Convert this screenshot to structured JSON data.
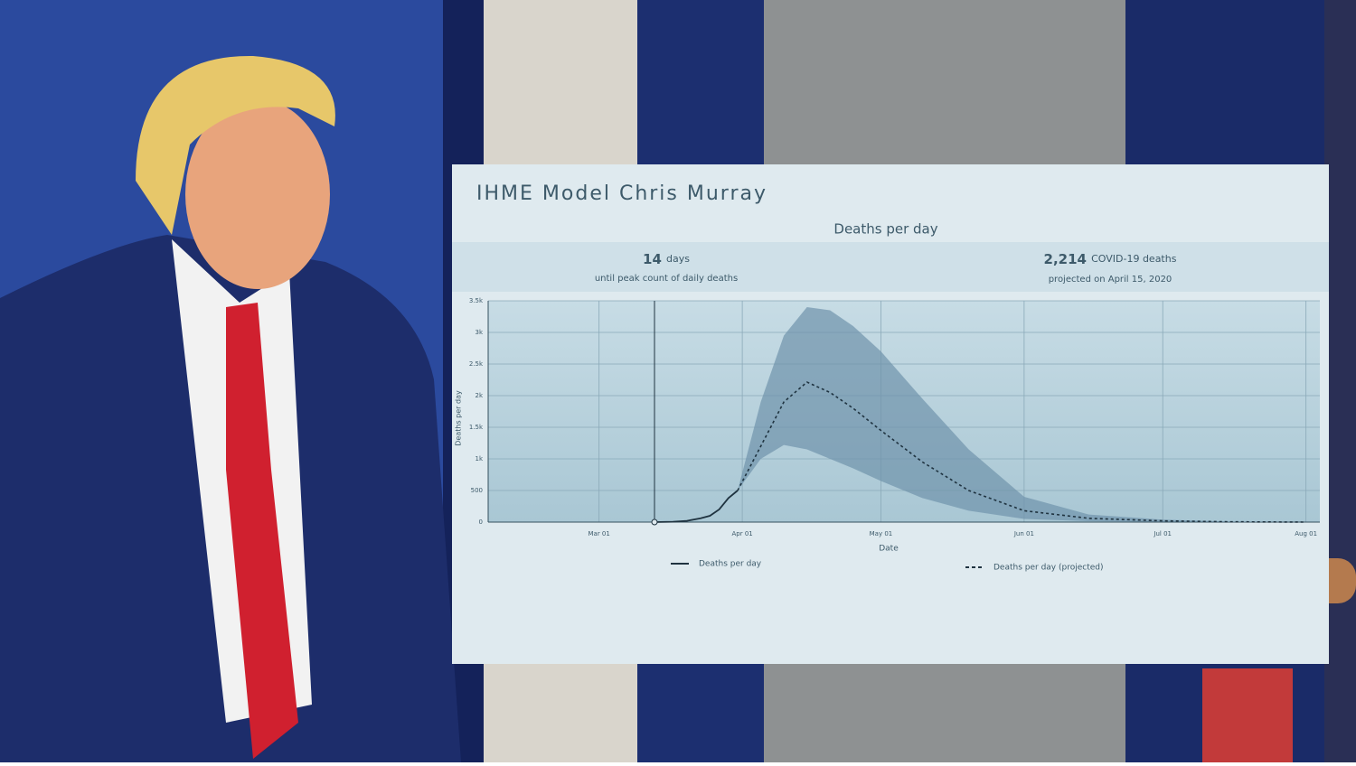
{
  "poster": {
    "title": "IHME Model Chris Murray",
    "subtitle": "Deaths per day",
    "stat_left": {
      "number": "14",
      "unit": "days",
      "caption": "until peak count of daily deaths"
    },
    "stat_right": {
      "number": "2,214",
      "unit": "COVID-19 deaths",
      "caption": "projected on April 15, 2020"
    }
  },
  "chart_data": {
    "type": "line",
    "x_label": "Date",
    "y_label": "Deaths per day",
    "xlim": [
      "Feb 06",
      "Aug 04"
    ],
    "xticks": [
      "Mar 01",
      "Apr 01",
      "May 01",
      "Jun 01",
      "Jul 01",
      "Aug 01"
    ],
    "ylim": [
      0,
      3500
    ],
    "yticks": [
      {
        "value": 0,
        "label": "0"
      },
      {
        "value": 500,
        "label": "500"
      },
      {
        "value": 1000,
        "label": "1k"
      },
      {
        "value": 1500,
        "label": "1.5k"
      },
      {
        "value": 2000,
        "label": "2k"
      },
      {
        "value": 2500,
        "label": "2.5k"
      },
      {
        "value": 3000,
        "label": "3k"
      },
      {
        "value": 3500,
        "label": "3.5k"
      }
    ],
    "grid": true,
    "vline_x": "Mar 13",
    "series": [
      {
        "name": "Deaths per day",
        "color": "#1f3340",
        "dash": false,
        "x": [
          "Mar 13",
          "Mar 17",
          "Mar 20",
          "Mar 23",
          "Mar 25",
          "Mar 27",
          "Mar 29",
          "Mar 31"
        ],
        "values": [
          0,
          5,
          20,
          60,
          100,
          200,
          380,
          500
        ]
      },
      {
        "name": "Deaths per day (projected)",
        "color": "#1f3340",
        "dash": true,
        "band_color": "#6f93ab",
        "x": [
          "Mar 31",
          "Apr 05",
          "Apr 10",
          "Apr 15",
          "Apr 20",
          "Apr 25",
          "May 01",
          "May 10",
          "May 20",
          "Jun 01",
          "Jun 15",
          "Jul 01",
          "Jul 15",
          "Aug 01"
        ],
        "values": [
          500,
          1200,
          1900,
          2214,
          2050,
          1800,
          1450,
          950,
          500,
          180,
          60,
          20,
          5,
          0
        ],
        "upper": [
          500,
          1900,
          2950,
          3400,
          3350,
          3100,
          2700,
          1950,
          1150,
          400,
          120,
          40,
          10,
          0
        ],
        "lower": [
          500,
          1000,
          1220,
          1150,
          1000,
          850,
          650,
          380,
          180,
          50,
          15,
          5,
          0,
          0
        ]
      }
    ]
  }
}
